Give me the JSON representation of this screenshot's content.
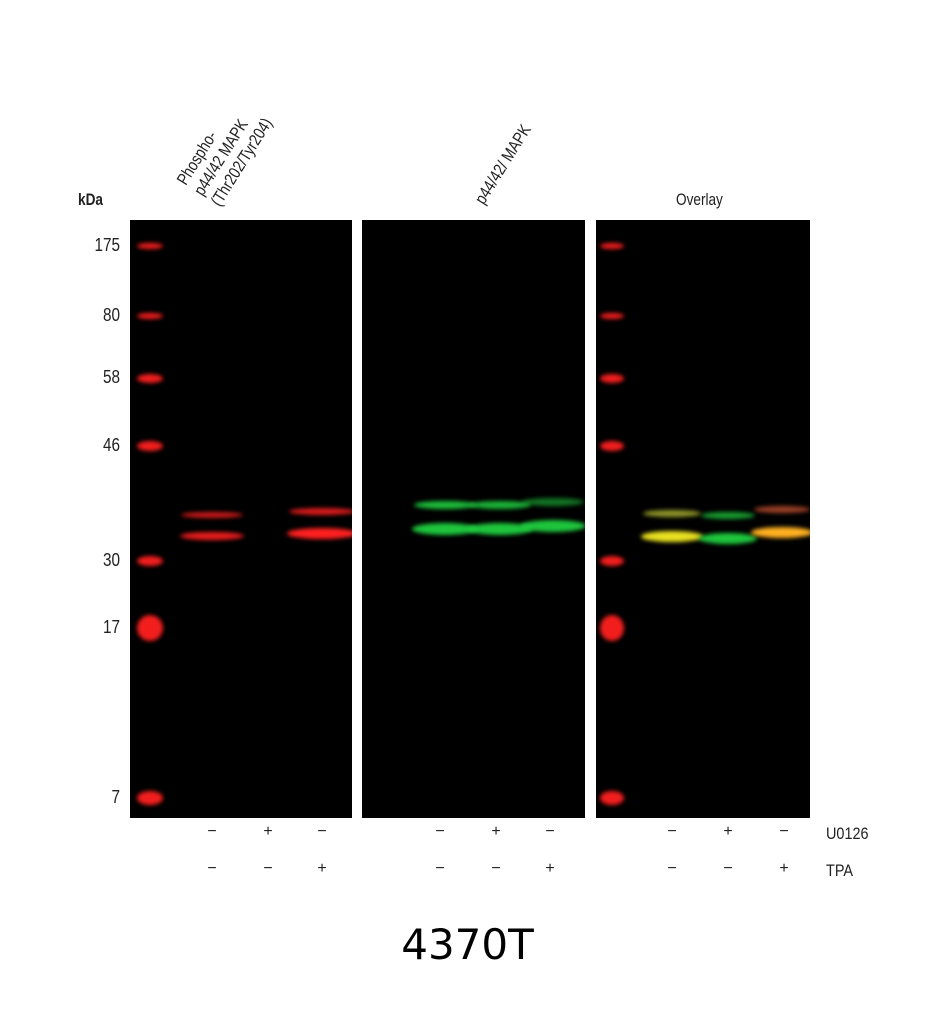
{
  "unit_label": "kDa",
  "panels": [
    {
      "title_lines": [
        "Phospho-",
        "p44/42 MAPK",
        "(Thr202/Tyr204)"
      ]
    },
    {
      "title_lines": [
        "p44/42/ MAPK"
      ]
    },
    {
      "title_lines": [
        "Overlay"
      ]
    }
  ],
  "mw_markers": [
    "175",
    "80",
    "58",
    "46",
    "30",
    "17",
    "7"
  ],
  "treatments": [
    {
      "name": "U0126",
      "signs": [
        "−",
        "+",
        "−"
      ]
    },
    {
      "name": "TPA",
      "signs": [
        "−",
        "−",
        "+"
      ]
    }
  ],
  "catalog": "4370T",
  "colors": {
    "phospho": "#ff2020",
    "total": "#20d040",
    "overlay_merge": "#e8e020",
    "background": "#000000"
  }
}
